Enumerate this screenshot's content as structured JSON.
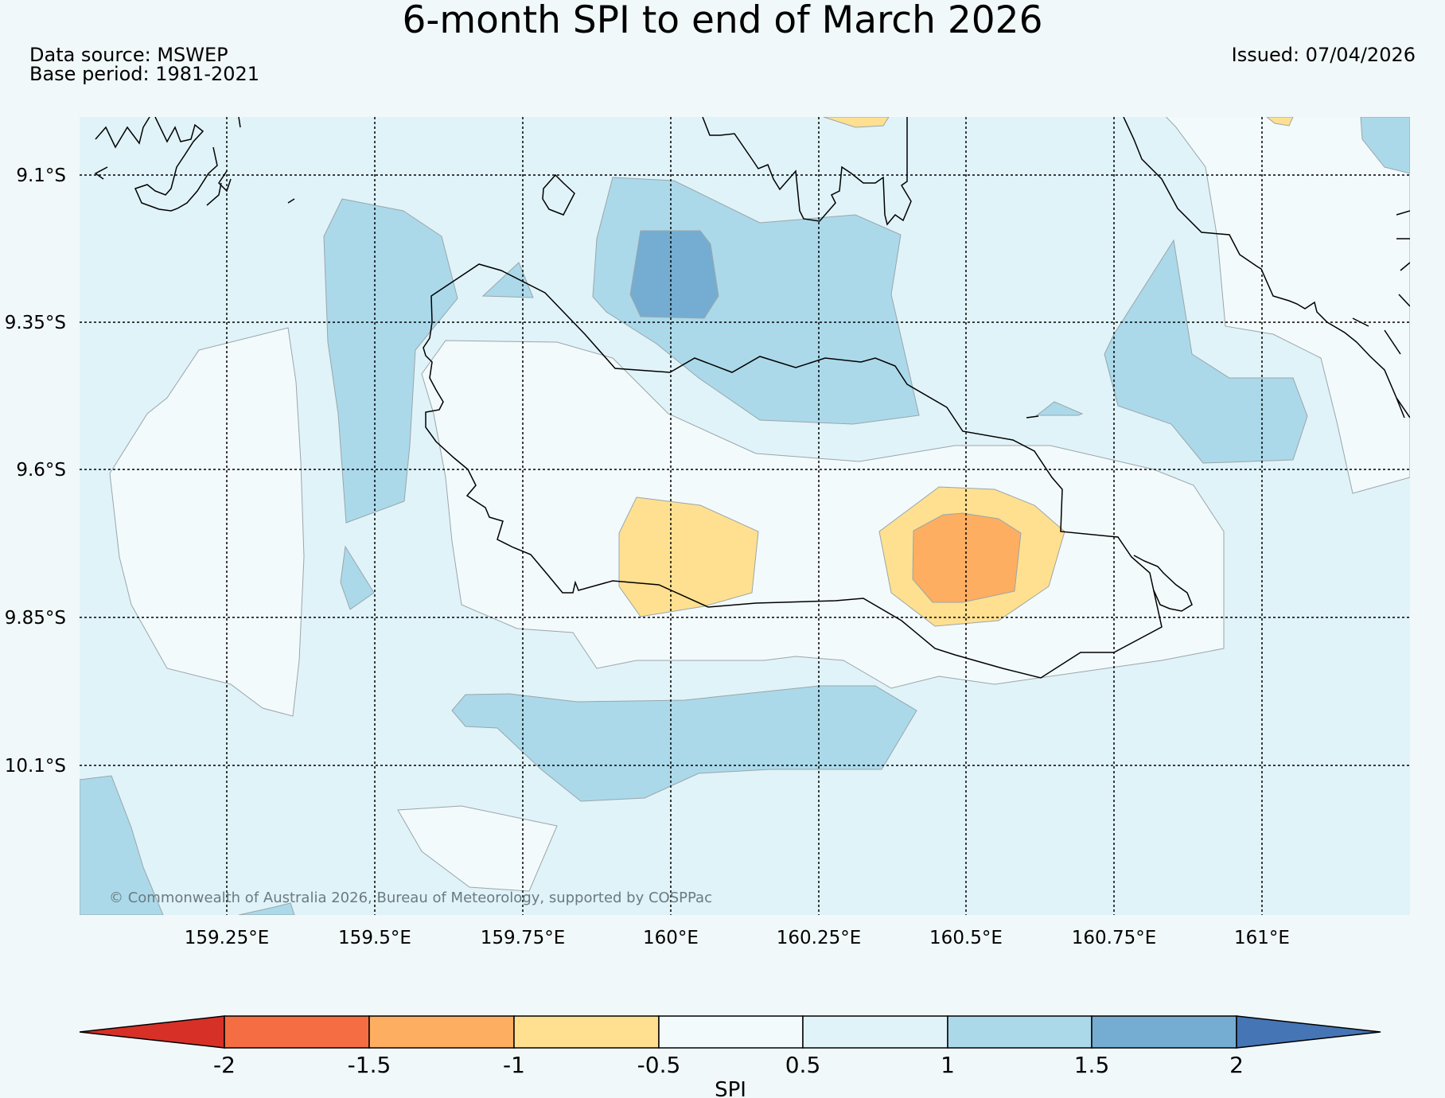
{
  "title": "6-month SPI to end of March 2026",
  "data_source": "Data source: MSWEP",
  "base_period": "Base period: 1981-2021",
  "issued": "Issued: 07/04/2026",
  "copyright": "© Commonwealth of Australia 2026, Bureau of Meteorology, supported by COSPPac",
  "lat_labels": [
    "9.1°S",
    "9.35°S",
    "9.6°S",
    "9.85°S",
    "10.1°S"
  ],
  "lon_labels": [
    "159.25°E",
    "159.5°E",
    "159.75°E",
    "160°E",
    "160.25°E",
    "160.5°E",
    "160.75°E",
    "161°E"
  ],
  "colorbar": {
    "title": "SPI",
    "tick_labels": [
      "-2",
      "-1.5",
      "-1",
      "-0.5",
      "0.5",
      "1",
      "1.5",
      "2"
    ],
    "colors": {
      "below_-2": "#d73027",
      "-2_-1.5": "#f46d43",
      "-1.5_-1": "#fdae61",
      "-1_-0.5": "#fee090",
      "-0.5_0.5": "#f3fafc",
      "0.5_1": "#e0f3f8",
      "1_1.5": "#abd9e9",
      "1.5_2": "#74add1",
      "above_2": "#4575b4"
    }
  },
  "colors": {
    "background": "#f1f8fa",
    "gridline": "#000000",
    "coastline": "#000000",
    "contour_edge": "#9aa6ab"
  }
}
